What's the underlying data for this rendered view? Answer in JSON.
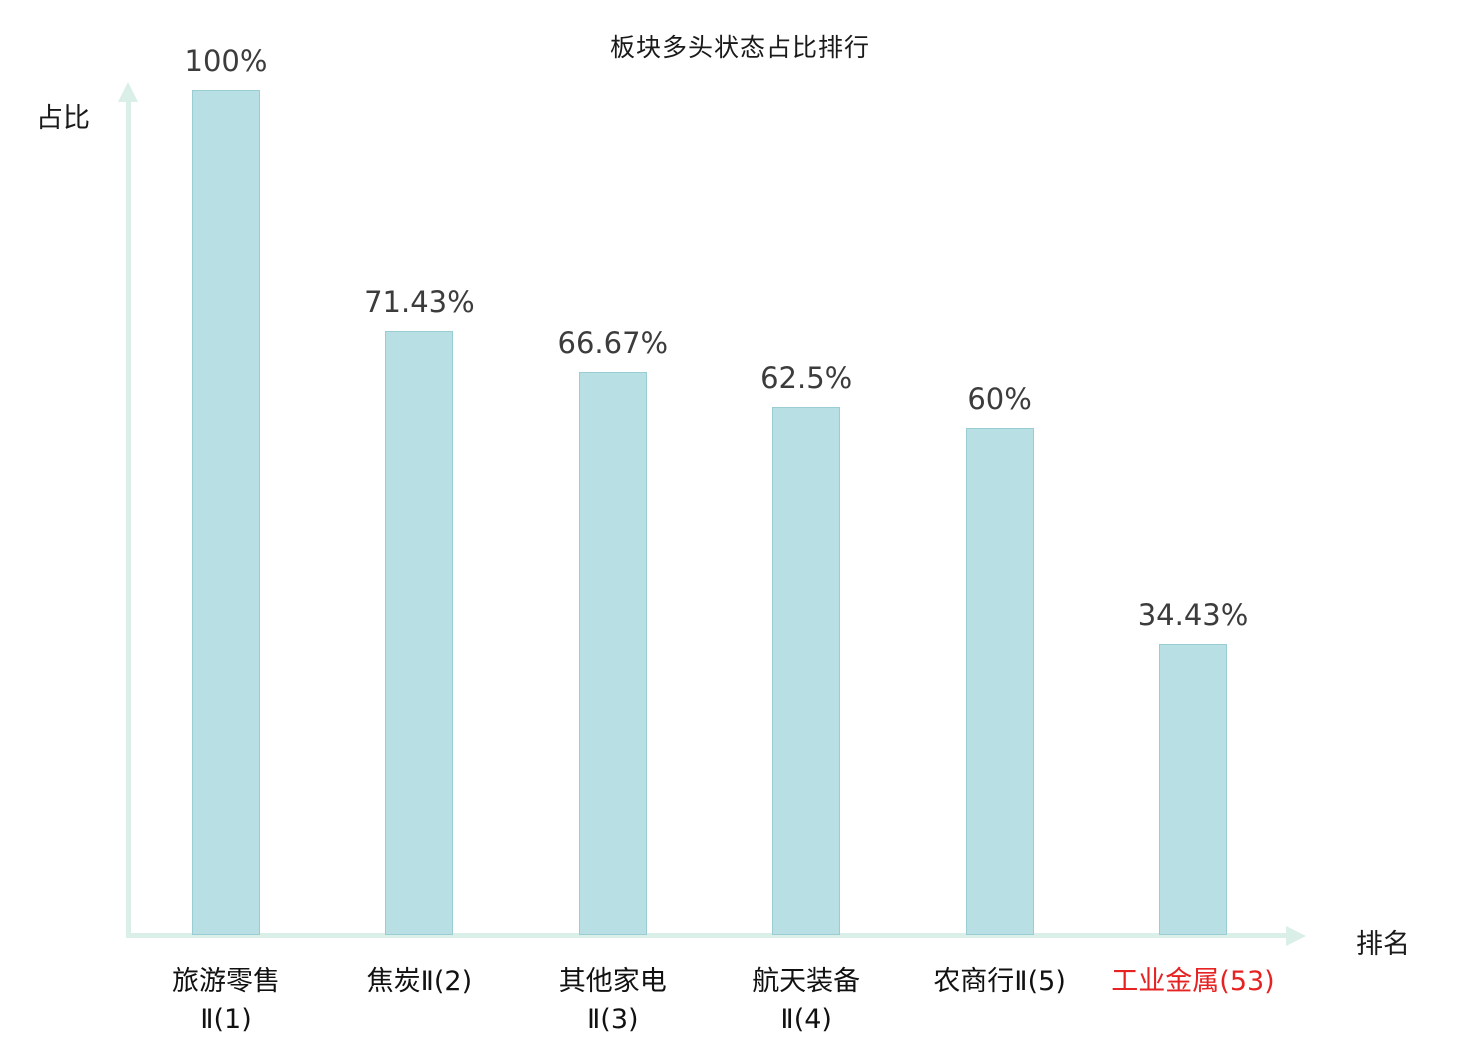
{
  "chart": {
    "title": "板块多头状态占比排行",
    "ylabel": "占比",
    "xlabel": "排名"
  },
  "chart_data": {
    "type": "bar",
    "title": "板块多头状态占比排行",
    "xlabel": "排名",
    "ylabel": "占比",
    "ylim": [
      0,
      100
    ],
    "grid": false,
    "legend": "none",
    "bar_color": "#b8dfe4",
    "bar_border_color": "#99ccd3",
    "axis_color": "#d9efe7",
    "text_color": "#3c3c3c",
    "highlight_color": "#e62222",
    "categories": [
      {
        "lines": [
          "旅游零售",
          "Ⅱ(1)"
        ],
        "highlight": false
      },
      {
        "lines": [
          "焦炭Ⅱ(2)"
        ],
        "highlight": false
      },
      {
        "lines": [
          "其他家电",
          "Ⅱ(3)"
        ],
        "highlight": false
      },
      {
        "lines": [
          "航天装备",
          "Ⅱ(4)"
        ],
        "highlight": false
      },
      {
        "lines": [
          "农商行Ⅱ(5)"
        ],
        "highlight": false
      },
      {
        "lines": [
          "工业金属(53)"
        ],
        "highlight": true
      }
    ],
    "values": [
      100,
      71.43,
      66.67,
      62.5,
      60,
      34.43
    ],
    "value_labels": [
      "100%",
      "71.43%",
      "66.67%",
      "62.5%",
      "60%",
      "34.43%"
    ]
  }
}
